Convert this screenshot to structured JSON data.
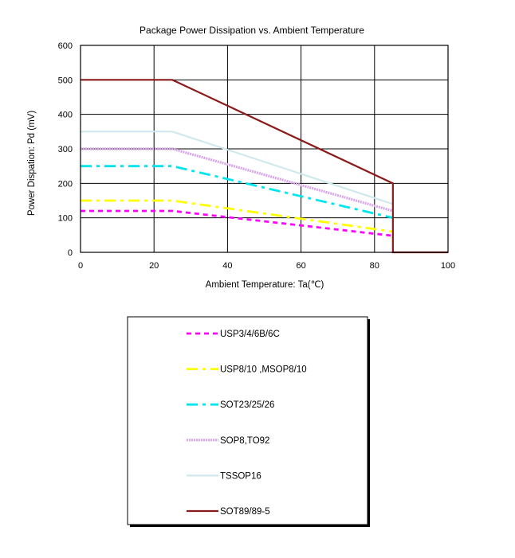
{
  "chart_data": {
    "type": "line",
    "title": "Package Power Dissipation vs. Ambient Temperature",
    "xlabel": "Ambient Temperature: Ta(℃)",
    "ylabel": "Power Dispation: Pd (mV)",
    "xlim": [
      0,
      100
    ],
    "ylim": [
      0,
      600
    ],
    "xticks": [
      0,
      20,
      40,
      60,
      80,
      100
    ],
    "yticks": [
      0,
      100,
      200,
      300,
      400,
      500,
      600
    ],
    "grid": true,
    "legend_position": "below",
    "series": [
      {
        "name": "USP3/4/6B/6C",
        "color": "#ff00ff",
        "style": "dashed",
        "x": [
          0,
          25,
          85
        ],
        "y": [
          120,
          120,
          48
        ]
      },
      {
        "name": "USP8/10 ,MSOP8/10",
        "color": "#ffff00",
        "style": "dashdot",
        "x": [
          0,
          25,
          85
        ],
        "y": [
          150,
          150,
          60
        ]
      },
      {
        "name": "SOT23/25/26",
        "color": "#00e5ee",
        "style": "dashdot",
        "x": [
          0,
          25,
          85
        ],
        "y": [
          250,
          250,
          100
        ]
      },
      {
        "name": "SOP8,TO92",
        "color": "#d7a6e8",
        "style": "dotted",
        "x": [
          0,
          25,
          85
        ],
        "y": [
          300,
          300,
          120
        ]
      },
      {
        "name": "TSSOP16",
        "color": "#cfe9ec",
        "style": "solid",
        "x": [
          0,
          25,
          85
        ],
        "y": [
          350,
          350,
          140
        ]
      },
      {
        "name": "SOT89/89-5",
        "color": "#8b1a1a",
        "style": "solid",
        "x": [
          0,
          25,
          85,
          85,
          100
        ],
        "y": [
          500,
          500,
          200,
          0,
          0
        ]
      }
    ]
  }
}
